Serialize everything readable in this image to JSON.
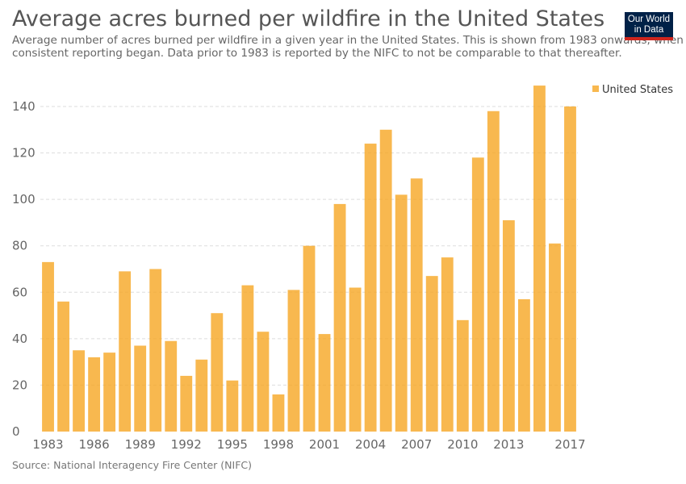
{
  "header": {
    "title": "Average acres burned per wildfire in the United States",
    "subtitle": "Average number of acres burned per wildfire in a given year in the United States. This is shown from 1983 onwards, when consistent reporting began. Data prior to 1983 is reported by the NIFC to not be comparable to that thereafter."
  },
  "logo": {
    "line1": "Our World",
    "line2": "in Data",
    "bg_color": "#002147",
    "accent_color": "#ce261e"
  },
  "footer": {
    "source": "Source: National Interagency Fire Center (NIFC)"
  },
  "chart_data": {
    "type": "bar",
    "title": "Average acres burned per wildfire in the United States",
    "xlabel": "",
    "ylabel": "",
    "ylim": [
      0,
      150
    ],
    "grid": true,
    "legend_position": "top-right",
    "color": "#f6a623",
    "x_tick_labels": [
      "1983",
      "1986",
      "1989",
      "1992",
      "1995",
      "1998",
      "2001",
      "2004",
      "2007",
      "2010",
      "2013",
      "2017"
    ],
    "y_ticks": [
      0,
      20,
      40,
      60,
      80,
      100,
      120,
      140
    ],
    "categories": [
      "1983",
      "1984",
      "1985",
      "1986",
      "1987",
      "1988",
      "1989",
      "1990",
      "1991",
      "1992",
      "1993",
      "1994",
      "1995",
      "1996",
      "1997",
      "1998",
      "1999",
      "2000",
      "2001",
      "2002",
      "2003",
      "2004",
      "2005",
      "2006",
      "2007",
      "2008",
      "2009",
      "2010",
      "2011",
      "2012",
      "2013",
      "2014",
      "2015",
      "2016",
      "2017"
    ],
    "series": [
      {
        "name": "United States",
        "values": [
          73,
          56,
          35,
          32,
          34,
          69,
          37,
          70,
          39,
          24,
          31,
          51,
          22,
          63,
          43,
          16,
          61,
          80,
          42,
          98,
          62,
          124,
          130,
          102,
          109,
          67,
          75,
          48,
          118,
          138,
          91,
          57,
          149,
          81,
          140
        ]
      }
    ]
  }
}
